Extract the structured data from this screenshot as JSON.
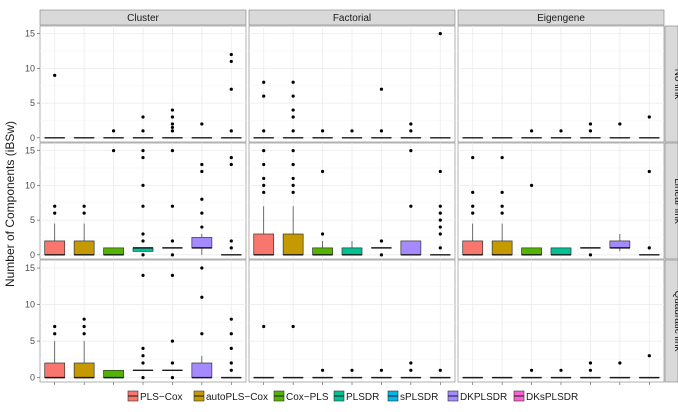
{
  "chart_data": {
    "type": "boxplot",
    "ylabel": "Number of Components (iBSw)",
    "ylim": [
      0,
      15.5
    ],
    "yticks": [
      0,
      5,
      10,
      15
    ],
    "column_facets": [
      "Cluster",
      "Factorial",
      "Eigengene"
    ],
    "row_facets": [
      "No link",
      "Linear link",
      "Quadratic link"
    ],
    "methods": [
      {
        "name": "PLS−Cox",
        "color": "#F8766D"
      },
      {
        "name": "autoPLS−Cox",
        "color": "#C49A00"
      },
      {
        "name": "Cox−PLS",
        "color": "#53B400"
      },
      {
        "name": "PLSDR",
        "color": "#00C094"
      },
      {
        "name": "sPLSDR",
        "color": "#00B6EB"
      },
      {
        "name": "DKPLSDR",
        "color": "#A58AFF"
      },
      {
        "name": "DKsPLSDR",
        "color": "#FB61D7"
      }
    ],
    "panels": [
      {
        "row": 0,
        "col": 0,
        "boxes": [
          {
            "q1": 0,
            "med": 0,
            "q3": 0,
            "lo": 0,
            "hi": 0,
            "out": [
              9
            ]
          },
          {
            "q1": 0,
            "med": 0,
            "q3": 0,
            "lo": 0,
            "hi": 0,
            "out": []
          },
          {
            "q1": 0,
            "med": 0,
            "q3": 0,
            "lo": 0,
            "hi": 0,
            "out": [
              1
            ]
          },
          {
            "q1": 0,
            "med": 0,
            "q3": 0,
            "lo": 0,
            "hi": 0,
            "out": [
              1,
              3
            ]
          },
          {
            "q1": 0,
            "med": 0,
            "q3": 0,
            "lo": 0,
            "hi": 0,
            "out": [
              1,
              1.5,
              2,
              3,
              4
            ]
          },
          {
            "q1": 0,
            "med": 0,
            "q3": 0,
            "lo": 0,
            "hi": 0,
            "out": [
              2
            ]
          },
          {
            "q1": 0,
            "med": 0,
            "q3": 0,
            "lo": 0,
            "hi": 0,
            "out": [
              1,
              7,
              11,
              12
            ]
          }
        ]
      },
      {
        "row": 0,
        "col": 1,
        "boxes": [
          {
            "q1": 0,
            "med": 0,
            "q3": 0,
            "lo": 0,
            "hi": 0,
            "out": [
              1,
              6,
              8
            ]
          },
          {
            "q1": 0,
            "med": 0,
            "q3": 0,
            "lo": 0,
            "hi": 0,
            "out": [
              1,
              3,
              4,
              6,
              8
            ]
          },
          {
            "q1": 0,
            "med": 0,
            "q3": 0,
            "lo": 0,
            "hi": 0,
            "out": [
              1
            ]
          },
          {
            "q1": 0,
            "med": 0,
            "q3": 0,
            "lo": 0,
            "hi": 0,
            "out": [
              1
            ]
          },
          {
            "q1": 0,
            "med": 0,
            "q3": 0,
            "lo": 0,
            "hi": 0,
            "out": [
              1,
              7
            ]
          },
          {
            "q1": 0,
            "med": 0,
            "q3": 0,
            "lo": 0,
            "hi": 0,
            "out": [
              1,
              2
            ]
          },
          {
            "q1": 0,
            "med": 0,
            "q3": 0,
            "lo": 0,
            "hi": 0,
            "out": [
              15
            ]
          }
        ]
      },
      {
        "row": 0,
        "col": 2,
        "boxes": [
          {
            "q1": 0,
            "med": 0,
            "q3": 0,
            "lo": 0,
            "hi": 0,
            "out": []
          },
          {
            "q1": 0,
            "med": 0,
            "q3": 0,
            "lo": 0,
            "hi": 0,
            "out": []
          },
          {
            "q1": 0,
            "med": 0,
            "q3": 0,
            "lo": 0,
            "hi": 0,
            "out": [
              1
            ]
          },
          {
            "q1": 0,
            "med": 0,
            "q3": 0,
            "lo": 0,
            "hi": 0,
            "out": [
              1
            ]
          },
          {
            "q1": 0,
            "med": 0,
            "q3": 0,
            "lo": 0,
            "hi": 0,
            "out": [
              1,
              2
            ]
          },
          {
            "q1": 0,
            "med": 0,
            "q3": 0,
            "lo": 0,
            "hi": 0,
            "out": [
              2
            ]
          },
          {
            "q1": 0,
            "med": 0,
            "q3": 0,
            "lo": 0,
            "hi": 0,
            "out": [
              3
            ]
          }
        ]
      },
      {
        "row": 1,
        "col": 0,
        "boxes": [
          {
            "q1": 0,
            "med": 0,
            "q3": 2,
            "lo": 0,
            "hi": 4.5,
            "out": [
              6,
              7
            ]
          },
          {
            "q1": 0,
            "med": 0,
            "q3": 2,
            "lo": 0,
            "hi": 4.5,
            "out": [
              6,
              7
            ]
          },
          {
            "q1": 0,
            "med": 0,
            "q3": 1,
            "lo": 0,
            "hi": 1,
            "out": [
              15
            ]
          },
          {
            "q1": 0.5,
            "med": 1,
            "q3": 1,
            "lo": 0.5,
            "hi": 1,
            "out": [
              0,
              2,
              3,
              7,
              10,
              14,
              15
            ]
          },
          {
            "q1": 1,
            "med": 1,
            "q3": 1,
            "lo": 1,
            "hi": 1,
            "out": [
              0,
              2,
              7,
              15
            ]
          },
          {
            "q1": 1,
            "med": 1,
            "q3": 2.5,
            "lo": 0,
            "hi": 3,
            "out": [
              4,
              6,
              8,
              12,
              13
            ]
          },
          {
            "q1": 0,
            "med": 0,
            "q3": 0,
            "lo": 0,
            "hi": 0,
            "out": [
              1,
              2,
              13,
              14
            ]
          }
        ]
      },
      {
        "row": 1,
        "col": 1,
        "boxes": [
          {
            "q1": 0,
            "med": 0,
            "q3": 3,
            "lo": 0,
            "hi": 7,
            "out": [
              9,
              10,
              11,
              13,
              15
            ]
          },
          {
            "q1": 0,
            "med": 0,
            "q3": 3,
            "lo": 0,
            "hi": 7,
            "out": [
              9,
              10,
              11,
              13,
              15
            ]
          },
          {
            "q1": 0,
            "med": 0,
            "q3": 1,
            "lo": 0,
            "hi": 2,
            "out": [
              3,
              12
            ]
          },
          {
            "q1": 0,
            "med": 0,
            "q3": 1,
            "lo": 0,
            "hi": 2,
            "out": []
          },
          {
            "q1": 1,
            "med": 1,
            "q3": 1,
            "lo": 1,
            "hi": 1,
            "out": [
              0,
              2
            ]
          },
          {
            "q1": 0,
            "med": 0,
            "q3": 2,
            "lo": 0,
            "hi": 2,
            "out": [
              7,
              15
            ]
          },
          {
            "q1": 0,
            "med": 0,
            "q3": 0,
            "lo": 0,
            "hi": 0,
            "out": [
              1,
              3,
              4,
              5,
              6,
              7,
              12
            ]
          }
        ]
      },
      {
        "row": 1,
        "col": 2,
        "boxes": [
          {
            "q1": 0,
            "med": 0,
            "q3": 2,
            "lo": 0,
            "hi": 4.5,
            "out": [
              6,
              7,
              9,
              14
            ]
          },
          {
            "q1": 0,
            "med": 0,
            "q3": 2,
            "lo": 0,
            "hi": 4.5,
            "out": [
              6,
              7,
              9,
              14
            ]
          },
          {
            "q1": 0,
            "med": 0,
            "q3": 1,
            "lo": 0,
            "hi": 1,
            "out": [
              10
            ]
          },
          {
            "q1": 0,
            "med": 0,
            "q3": 1,
            "lo": 0,
            "hi": 1,
            "out": []
          },
          {
            "q1": 1,
            "med": 1,
            "q3": 1,
            "lo": 1,
            "hi": 1,
            "out": [
              0
            ]
          },
          {
            "q1": 1,
            "med": 1,
            "q3": 2,
            "lo": 0.5,
            "hi": 3,
            "out": []
          },
          {
            "q1": 0,
            "med": 0,
            "q3": 0,
            "lo": 0,
            "hi": 0,
            "out": [
              1,
              12
            ]
          }
        ]
      },
      {
        "row": 2,
        "col": 0,
        "boxes": [
          {
            "q1": 0,
            "med": 0,
            "q3": 2,
            "lo": 0,
            "hi": 5,
            "out": [
              6,
              7
            ]
          },
          {
            "q1": 0,
            "med": 0,
            "q3": 2,
            "lo": 0,
            "hi": 5,
            "out": [
              6,
              7,
              8
            ]
          },
          {
            "q1": 0,
            "med": 0,
            "q3": 1,
            "lo": 0,
            "hi": 1,
            "out": []
          },
          {
            "q1": 1,
            "med": 1,
            "q3": 1,
            "lo": 1,
            "hi": 1,
            "out": [
              0,
              2,
              3,
              4,
              14
            ]
          },
          {
            "q1": 1,
            "med": 1,
            "q3": 1,
            "lo": 1,
            "hi": 1,
            "out": [
              0,
              2,
              5,
              14
            ]
          },
          {
            "q1": 0,
            "med": 0,
            "q3": 2,
            "lo": 0,
            "hi": 3,
            "out": [
              6,
              11,
              15
            ]
          },
          {
            "q1": 0,
            "med": 0,
            "q3": 0,
            "lo": 0,
            "hi": 0,
            "out": [
              1,
              2,
              4,
              6,
              8
            ]
          }
        ]
      },
      {
        "row": 2,
        "col": 1,
        "boxes": [
          {
            "q1": 0,
            "med": 0,
            "q3": 0,
            "lo": 0,
            "hi": 0,
            "out": [
              7
            ]
          },
          {
            "q1": 0,
            "med": 0,
            "q3": 0,
            "lo": 0,
            "hi": 0,
            "out": [
              7
            ]
          },
          {
            "q1": 0,
            "med": 0,
            "q3": 0,
            "lo": 0,
            "hi": 0,
            "out": [
              1
            ]
          },
          {
            "q1": 0,
            "med": 0,
            "q3": 0,
            "lo": 0,
            "hi": 0,
            "out": [
              1
            ]
          },
          {
            "q1": 0,
            "med": 0,
            "q3": 0,
            "lo": 0,
            "hi": 0,
            "out": [
              1
            ]
          },
          {
            "q1": 0,
            "med": 0,
            "q3": 0,
            "lo": 0,
            "hi": 0,
            "out": [
              1,
              2
            ]
          },
          {
            "q1": 0,
            "med": 0,
            "q3": 0,
            "lo": 0,
            "hi": 0,
            "out": [
              1
            ]
          }
        ]
      },
      {
        "row": 2,
        "col": 2,
        "boxes": [
          {
            "q1": 0,
            "med": 0,
            "q3": 0,
            "lo": 0,
            "hi": 0,
            "out": []
          },
          {
            "q1": 0,
            "med": 0,
            "q3": 0,
            "lo": 0,
            "hi": 0,
            "out": []
          },
          {
            "q1": 0,
            "med": 0,
            "q3": 0,
            "lo": 0,
            "hi": 0,
            "out": [
              1
            ]
          },
          {
            "q1": 0,
            "med": 0,
            "q3": 0,
            "lo": 0,
            "hi": 0,
            "out": [
              1
            ]
          },
          {
            "q1": 0,
            "med": 0,
            "q3": 0,
            "lo": 0,
            "hi": 0,
            "out": [
              1,
              2
            ]
          },
          {
            "q1": 0,
            "med": 0,
            "q3": 0,
            "lo": 0,
            "hi": 0,
            "out": [
              2
            ]
          },
          {
            "q1": 0,
            "med": 0,
            "q3": 0,
            "lo": 0,
            "hi": 0,
            "out": [
              3
            ]
          }
        ]
      }
    ]
  }
}
